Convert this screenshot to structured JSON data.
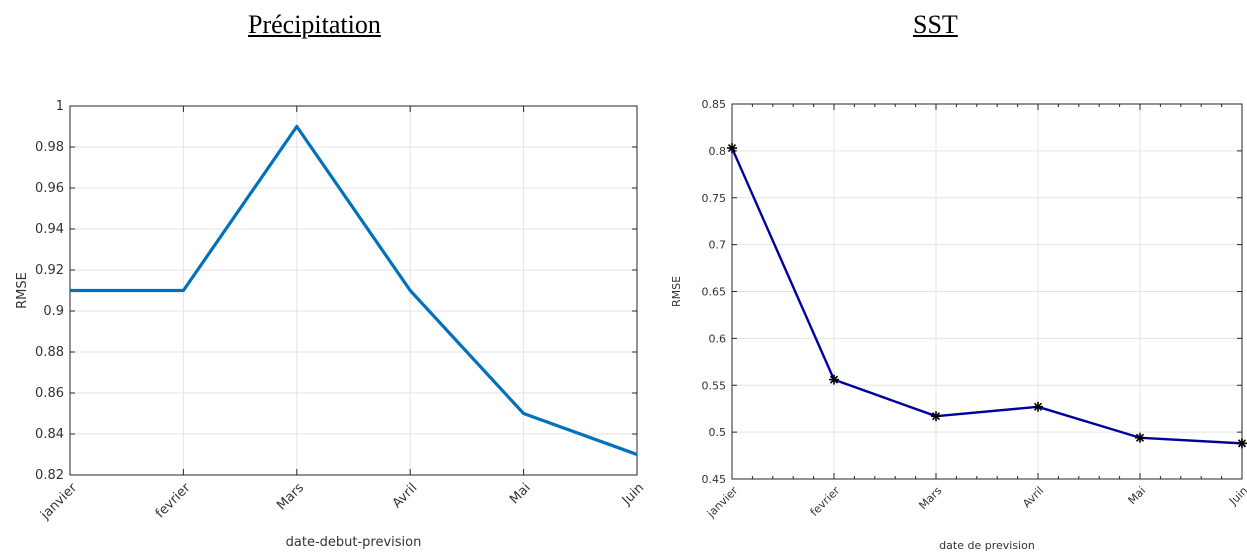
{
  "titles": {
    "left": "Précipitation",
    "right": "SST"
  },
  "chart_data": [
    {
      "type": "line",
      "title": "Précipitation",
      "xlabel": "date-debut-prevision",
      "ylabel": "RMSE",
      "categories": [
        "janvier",
        "fevrier",
        "Mars",
        "Avril",
        "Mai",
        "Juin"
      ],
      "values": [
        0.91,
        0.91,
        0.99,
        0.91,
        0.85,
        0.83
      ],
      "ylim": [
        0.82,
        1.0
      ],
      "yticks": [
        "0.82",
        "0.84",
        "0.86",
        "0.88",
        "0.9",
        "0.92",
        "0.94",
        "0.96",
        "0.98",
        "1"
      ],
      "grid": true,
      "markers": false,
      "color": "#0072BD"
    },
    {
      "type": "line",
      "title": "SST",
      "xlabel": "date de prevision",
      "ylabel": "RMSE",
      "categories": [
        "janvier",
        "fevrier",
        "Mars",
        "Avril",
        "Mai",
        "Juin"
      ],
      "values": [
        0.803,
        0.556,
        0.517,
        0.527,
        0.494,
        0.488
      ],
      "ylim": [
        0.45,
        0.85
      ],
      "yticks": [
        "0.45",
        "0.5",
        "0.55",
        "0.6",
        "0.65",
        "0.7",
        "0.75",
        "0.8",
        "0.85"
      ],
      "grid": true,
      "markers": true,
      "color": "#0000A0"
    }
  ]
}
